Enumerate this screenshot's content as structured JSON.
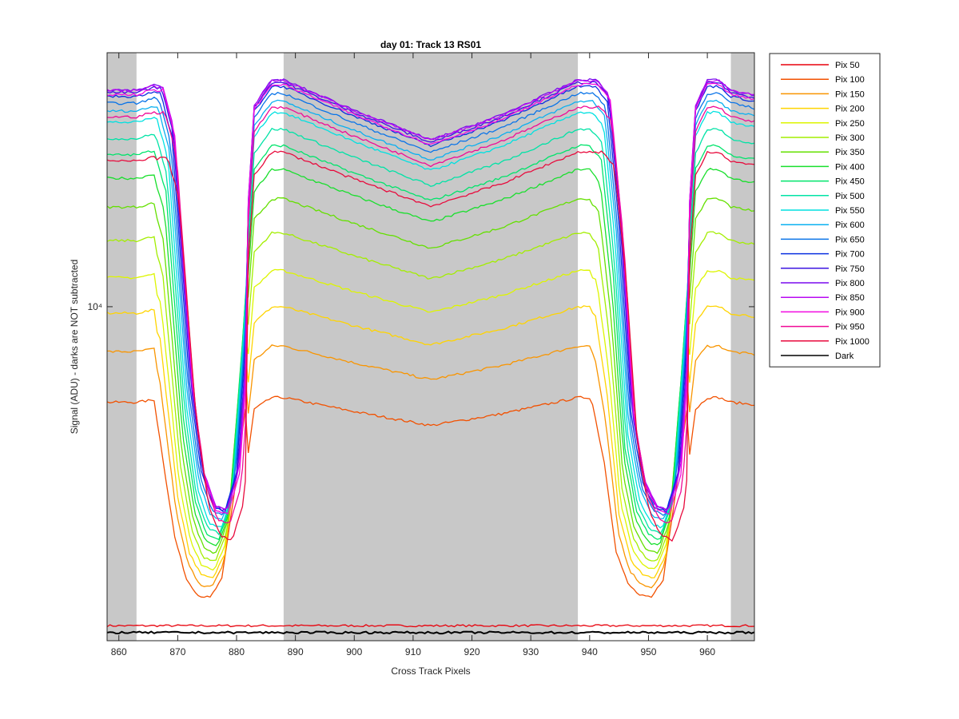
{
  "chart_data": {
    "type": "line",
    "title": "day 01: Track 13  RS01",
    "xlabel": "Cross Track Pixels",
    "ylabel": "Signal (ADU) - darks are NOT subtracted",
    "xlim": [
      858,
      968
    ],
    "ylim": [
      2000,
      34000
    ],
    "yscale": "log",
    "xticks": [
      860,
      870,
      880,
      890,
      900,
      910,
      920,
      930,
      940,
      950,
      960
    ],
    "yticks": [
      {
        "value": 10000,
        "label": "10⁴"
      }
    ],
    "grid": false,
    "legend_position": "outside-right",
    "shaded_regions": [
      [
        858,
        863
      ],
      [
        888,
        938
      ],
      [
        964,
        968
      ]
    ],
    "shade_color": "#c8c8c8",
    "profile_shape": {
      "x": [
        858,
        863,
        866,
        868,
        871,
        873,
        875,
        877,
        879,
        881,
        883,
        886,
        888,
        900,
        913,
        925,
        938,
        940,
        942,
        944,
        946,
        948,
        950,
        952,
        954,
        956,
        958,
        960,
        962,
        964,
        968
      ],
      "rel": [
        0.96,
        0.96,
        0.97,
        0.88,
        0.38,
        0.2,
        0.13,
        0.12,
        0.2,
        0.55,
        0.93,
        0.98,
        0.98,
        0.92,
        0.86,
        0.91,
        0.98,
        0.98,
        0.95,
        0.7,
        0.32,
        0.18,
        0.13,
        0.12,
        0.2,
        0.55,
        0.93,
        0.98,
        0.98,
        0.96,
        0.95
      ]
    },
    "series": [
      {
        "name": "Pix 50",
        "color": "#e8000b",
        "plateau": 2150,
        "trough": 2150,
        "shift": 0
      },
      {
        "name": "Pix 100",
        "color": "#f25100",
        "plateau": 6600,
        "trough": 2150,
        "shift": -1.5
      },
      {
        "name": "Pix 150",
        "color": "#f99500",
        "plateau": 8500,
        "trough": 2200,
        "shift": -1.2
      },
      {
        "name": "Pix 200",
        "color": "#ffd400",
        "plateau": 10300,
        "trough": 2250,
        "shift": -1.0
      },
      {
        "name": "Pix 250",
        "color": "#ddf500",
        "plateau": 12300,
        "trough": 2300,
        "shift": -0.8
      },
      {
        "name": "Pix 300",
        "color": "#a3ee00",
        "plateau": 14800,
        "trough": 2350,
        "shift": -0.6
      },
      {
        "name": "Pix 350",
        "color": "#64e000",
        "plateau": 17500,
        "trough": 2400,
        "shift": -0.4
      },
      {
        "name": "Pix 400",
        "color": "#19df2d",
        "plateau": 20200,
        "trough": 2450,
        "shift": -0.2
      },
      {
        "name": "Pix 450",
        "color": "#00e46b",
        "plateau": 22700,
        "trough": 2500,
        "shift": 0.0
      },
      {
        "name": "Pix 500",
        "color": "#00e3a6",
        "plateau": 24600,
        "trough": 2550,
        "shift": 0.2
      },
      {
        "name": "Pix 550",
        "color": "#00e1e1",
        "plateau": 26700,
        "trough": 2600,
        "shift": 0.4
      },
      {
        "name": "Pix 600",
        "color": "#0ab0f0",
        "plateau": 28200,
        "trough": 2700,
        "shift": 0.6
      },
      {
        "name": "Pix 650",
        "color": "#0a74e8",
        "plateau": 29300,
        "trough": 2750,
        "shift": 0.8
      },
      {
        "name": "Pix 700",
        "color": "#0a30e0",
        "plateau": 30300,
        "trough": 2800,
        "shift": 1.0
      },
      {
        "name": "Pix 750",
        "color": "#3c14e0",
        "plateau": 30900,
        "trough": 2800,
        "shift": 1.2
      },
      {
        "name": "Pix 800",
        "color": "#7a0aee",
        "plateau": 31300,
        "trough": 2800,
        "shift": 1.3
      },
      {
        "name": "Pix 850",
        "color": "#b80af2",
        "plateau": 31200,
        "trough": 2800,
        "shift": 1.4
      },
      {
        "name": "Pix 900",
        "color": "#f20ae0",
        "plateau": 30600,
        "trough": 2750,
        "shift": 1.5
      },
      {
        "name": "Pix 950",
        "color": "#f00a96",
        "plateau": 27400,
        "trough": 2650,
        "shift": 1.8
      },
      {
        "name": "Pix 1000",
        "color": "#e80a3c",
        "plateau": 22000,
        "trough": 2500,
        "shift": 2.2
      },
      {
        "name": "Dark",
        "color": "#000000",
        "plateau": 2080,
        "trough": 2080,
        "shift": 0
      }
    ]
  }
}
